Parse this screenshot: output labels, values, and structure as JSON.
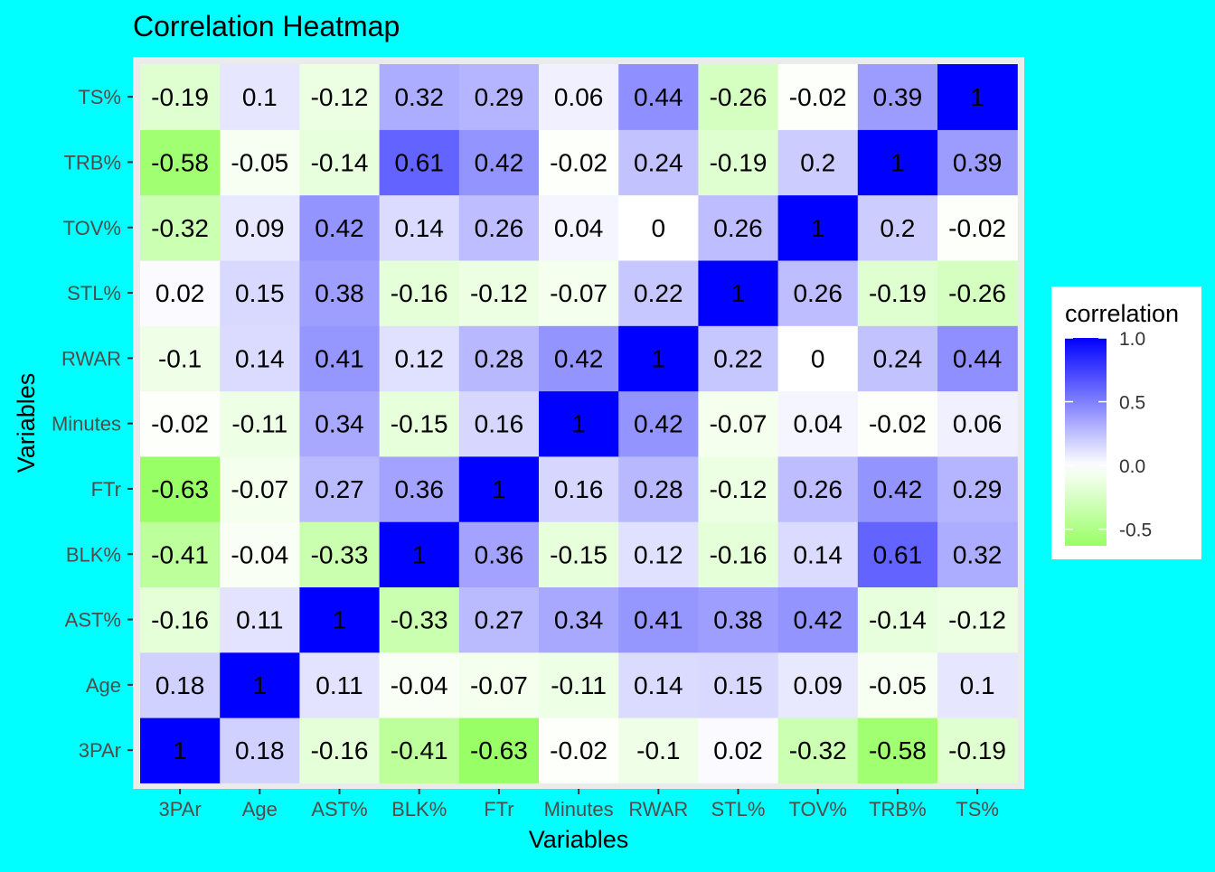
{
  "chart_data": {
    "type": "heatmap",
    "title": "Correlation Heatmap",
    "xlabel": "Variables",
    "ylabel": "Variables",
    "variables": [
      "3PAr",
      "Age",
      "AST%",
      "BLK%",
      "FTr",
      "Minutes",
      "RWAR",
      "STL%",
      "TOV%",
      "TRB%",
      "TS%"
    ],
    "matrix": [
      [
        1,
        0.18,
        -0.16,
        -0.41,
        -0.63,
        -0.02,
        -0.1,
        0.02,
        -0.32,
        -0.58,
        -0.19
      ],
      [
        0.18,
        1,
        0.11,
        -0.04,
        -0.07,
        -0.11,
        0.14,
        0.15,
        0.09,
        -0.05,
        0.1
      ],
      [
        -0.16,
        0.11,
        1,
        -0.33,
        0.27,
        0.34,
        0.41,
        0.38,
        0.42,
        -0.14,
        -0.12
      ],
      [
        -0.41,
        -0.04,
        -0.33,
        1,
        0.36,
        -0.15,
        0.12,
        -0.16,
        0.14,
        0.61,
        0.32
      ],
      [
        -0.63,
        -0.07,
        0.27,
        0.36,
        1,
        0.16,
        0.28,
        -0.12,
        0.26,
        0.42,
        0.29
      ],
      [
        -0.02,
        -0.11,
        0.34,
        -0.15,
        0.16,
        1,
        0.42,
        -0.07,
        0.04,
        -0.02,
        0.06
      ],
      [
        -0.1,
        0.14,
        0.41,
        0.12,
        0.28,
        0.42,
        1,
        0.22,
        0,
        0.24,
        0.44
      ],
      [
        0.02,
        0.15,
        0.38,
        -0.16,
        -0.12,
        -0.07,
        0.22,
        1,
        0.26,
        -0.19,
        -0.26
      ],
      [
        -0.32,
        0.09,
        0.42,
        0.14,
        0.26,
        0.04,
        0,
        0.26,
        1,
        0.2,
        -0.02
      ],
      [
        -0.58,
        -0.05,
        -0.14,
        0.61,
        0.42,
        -0.02,
        0.24,
        -0.19,
        0.2,
        1,
        0.39
      ],
      [
        -0.19,
        0.1,
        -0.12,
        0.32,
        0.29,
        0.06,
        0.44,
        -0.26,
        -0.02,
        0.39,
        1
      ]
    ],
    "legend": {
      "title": "correlation",
      "placement": "right",
      "ticks": [
        "1.0",
        "0.5",
        "0.0",
        "-0.5"
      ],
      "tick_values": [
        1,
        0.5,
        0,
        -0.5
      ],
      "range": [
        -0.63,
        1
      ]
    },
    "colors": {
      "high": "#0000ff",
      "mid": "#ffffff",
      "low": "#99ff66",
      "page_background": "#00ffff",
      "panel_background": "#ebebeb"
    }
  }
}
